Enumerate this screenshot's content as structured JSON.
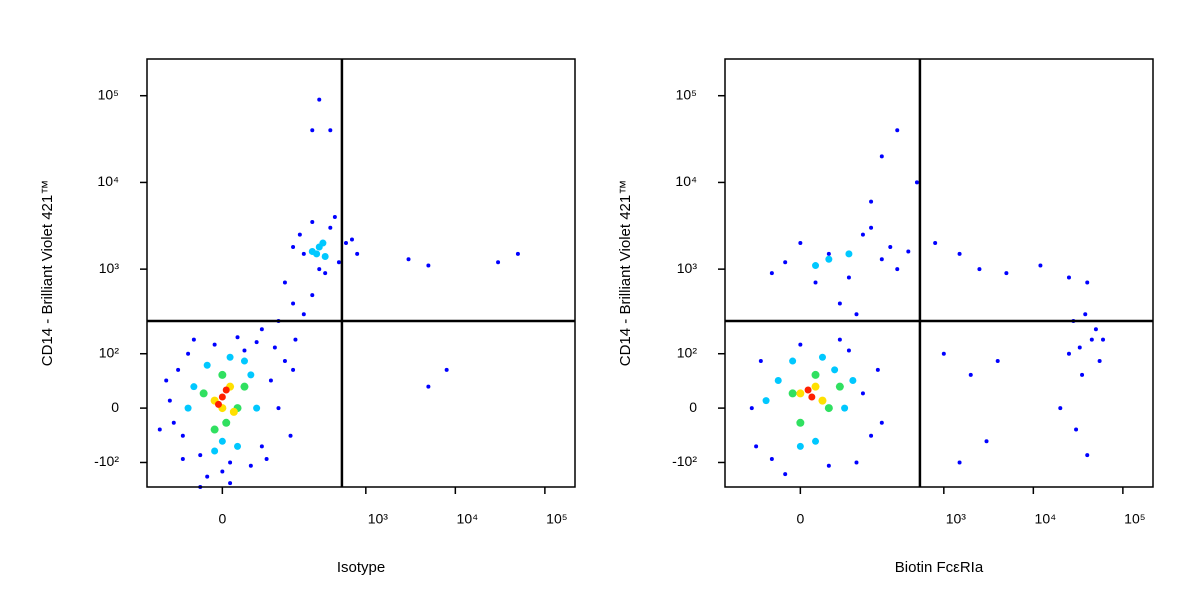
{
  "chart_data": [
    {
      "type": "scatter",
      "scale": "biexponential",
      "linear_width": 50,
      "x_label": "Isotype",
      "y_label": "CD14 - Brilliant Violet 421™",
      "xlim": [
        -170,
        217000
      ],
      "ylim": [
        -200,
        265000
      ],
      "xticks": [
        0,
        {
          "value": 1000,
          "label": "10³"
        },
        {
          "value": 10000,
          "label": "10⁴"
        },
        {
          "value": 100000,
          "label": "10⁵"
        }
      ],
      "yticks": [
        {
          "value": -100,
          "label": "-10²"
        },
        0,
        {
          "value": 100,
          "label": "10²"
        },
        {
          "value": 1000,
          "label": "10³"
        },
        {
          "value": 10000,
          "label": "10⁴"
        },
        {
          "value": 100000,
          "label": "10⁵"
        }
      ],
      "gate_x": 540,
      "gate_y": 250,
      "series": [
        {
          "color": "#0000ff",
          "x": [
            -90,
            -70,
            -60,
            -50,
            -30,
            -10,
            10,
            30,
            60,
            80,
            100,
            120,
            -80,
            -40,
            0,
            40,
            90,
            -100,
            -60,
            20,
            70,
            150,
            -20,
            50,
            200,
            250,
            150,
            100,
            60,
            120,
            300,
            400,
            200,
            250,
            350,
            500,
            600,
            450,
            150,
            180,
            3000,
            5000,
            50000,
            30000,
            800,
            700,
            400,
            250,
            300,
            5000,
            8000,
            -30,
            10,
            -120,
            140,
            160
          ],
          "y": [
            10,
            60,
            -40,
            100,
            -80,
            130,
            -100,
            110,
            -60,
            40,
            0,
            80,
            -20,
            150,
            -130,
            -110,
            120,
            40,
            -90,
            160,
            -90,
            60,
            -150,
            140,
            300,
            500,
            400,
            250,
            200,
            700,
            1000,
            3000,
            1500,
            3500,
            900,
            1200,
            2000,
            4000,
            1800,
            2500,
            1300,
            1100,
            1500,
            1200,
            1500,
            2200,
            40000,
            40000,
            90000,
            30,
            60,
            -200,
            -180,
            -30,
            -40,
            150
          ]
        },
        {
          "color": "#00c8ff",
          "x": [
            -40,
            -20,
            0,
            20,
            40,
            50,
            -50,
            10,
            -10,
            30,
            280,
            330,
            300,
            250,
            350
          ],
          "y": [
            30,
            70,
            -50,
            -60,
            50,
            0,
            0,
            90,
            -70,
            80,
            1500,
            2000,
            1800,
            1600,
            1400
          ]
        },
        {
          "color": "#30e060",
          "x": [
            -25,
            0,
            20,
            -10,
            30,
            5
          ],
          "y": [
            20,
            50,
            0,
            -30,
            30,
            -20
          ]
        },
        {
          "color": "#ffe000",
          "x": [
            -10,
            10,
            0,
            15
          ],
          "y": [
            10,
            30,
            0,
            -5
          ]
        },
        {
          "color": "#ff2000",
          "x": [
            0,
            -5,
            5
          ],
          "y": [
            15,
            5,
            25
          ]
        }
      ]
    },
    {
      "type": "scatter",
      "scale": "biexponential",
      "linear_width": 50,
      "x_label": "Biotin FcεRIa",
      "y_label": "CD14 - Brilliant Violet 421™",
      "xlim": [
        -170,
        217000
      ],
      "ylim": [
        -200,
        265000
      ],
      "xticks": [
        0,
        {
          "value": 1000,
          "label": "10³"
        },
        {
          "value": 10000,
          "label": "10⁴"
        },
        {
          "value": 100000,
          "label": "10⁵"
        }
      ],
      "yticks": [
        {
          "value": -100,
          "label": "-10²"
        },
        0,
        {
          "value": 100,
          "label": "10²"
        },
        {
          "value": 1000,
          "label": "10³"
        },
        {
          "value": 10000,
          "label": "10⁴"
        },
        {
          "value": 100000,
          "label": "10⁵"
        }
      ],
      "gate_x": 540,
      "gate_y": 250,
      "series": [
        {
          "color": "#0000ff",
          "x": [
            -80,
            -60,
            -40,
            0,
            40,
            80,
            120,
            150,
            100,
            -70,
            60,
            -20,
            180,
            200,
            -20,
            0,
            40,
            80,
            120,
            200,
            300,
            150,
            20,
            60,
            250,
            400,
            -40,
            100,
            800,
            1500,
            2500,
            5000,
            12000,
            25000,
            40000,
            1000,
            2000,
            3000,
            1500,
            4000,
            25000,
            35000,
            45000,
            30000,
            40000,
            50000,
            28000,
            38000,
            55000,
            33000,
            20000,
            60000,
            300,
            500,
            200,
            150
          ],
          "y": [
            0,
            80,
            -90,
            130,
            -110,
            110,
            20,
            -40,
            -100,
            -60,
            150,
            -140,
            60,
            -20,
            1200,
            2000,
            1500,
            800,
            2500,
            1300,
            1000,
            3000,
            700,
            400,
            1800,
            1600,
            900,
            300,
            2000,
            1500,
            1000,
            900,
            1100,
            800,
            700,
            100,
            50,
            -50,
            -100,
            80,
            100,
            50,
            150,
            -30,
            -80,
            200,
            250,
            300,
            80,
            120,
            0,
            150,
            40000,
            10000,
            20000,
            6000
          ]
        },
        {
          "color": "#00c8ff",
          "x": [
            -30,
            -10,
            20,
            50,
            70,
            -50,
            30,
            0,
            90,
            40,
            80,
            20
          ],
          "y": [
            40,
            80,
            -50,
            60,
            0,
            10,
            90,
            -60,
            40,
            1300,
            1500,
            1100
          ]
        },
        {
          "color": "#30e060",
          "x": [
            -10,
            20,
            40,
            0,
            60
          ],
          "y": [
            20,
            50,
            0,
            -20,
            30
          ]
        },
        {
          "color": "#ffe000",
          "x": [
            0,
            20,
            30
          ],
          "y": [
            20,
            30,
            10
          ]
        },
        {
          "color": "#ff2000",
          "x": [
            10,
            15
          ],
          "y": [
            25,
            15
          ]
        }
      ]
    }
  ]
}
